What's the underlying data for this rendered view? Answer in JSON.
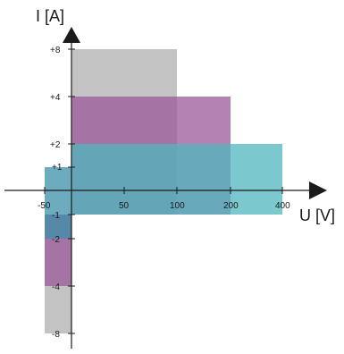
{
  "axes": {
    "y_label": "I [A]",
    "x_label": "U [V]",
    "y_ticks": [
      "+8",
      "+4",
      "+2",
      "+1",
      "-1",
      "-2",
      "-4",
      "-8"
    ],
    "x_ticks": [
      "-50",
      "50",
      "100",
      "200",
      "400"
    ]
  },
  "regions": [
    {
      "name": "gray",
      "color": "#b8b8b8",
      "opacity": 0.85,
      "U_range": [
        "-50",
        "100"
      ],
      "I_range": [
        "-8",
        "+8"
      ]
    },
    {
      "name": "purple",
      "color": "#9b5a9a",
      "opacity": 0.75,
      "U_range": [
        "-50",
        "200"
      ],
      "I_range": [
        "-4",
        "+4"
      ]
    },
    {
      "name": "teal",
      "color": "#4fb7bd",
      "opacity": 0.75,
      "U_range": [
        "-50",
        "400"
      ],
      "I_range": [
        "-2",
        "+2"
      ]
    }
  ]
}
